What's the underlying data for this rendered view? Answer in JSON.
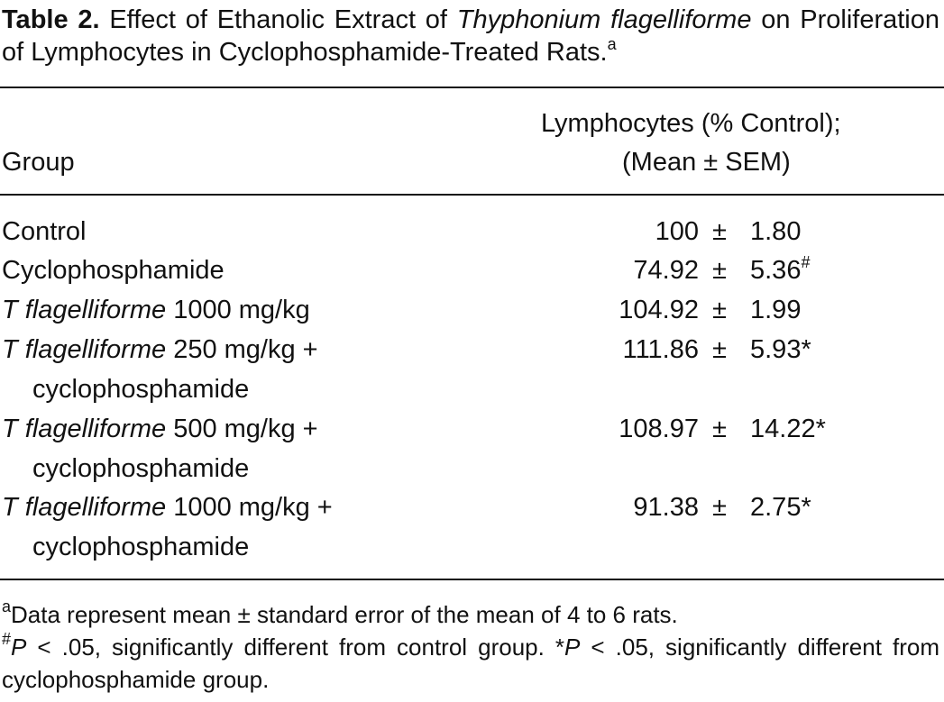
{
  "caption": {
    "label": "Table 2.",
    "text1": "Effect of Ethanolic Extract of",
    "italic": "Thyphonium flagelliforme",
    "text2": "on Proliferation of Lymphocytes in Cyclophosphamide-Treated Rats.",
    "note": "a"
  },
  "table": {
    "headers": {
      "group": "Group",
      "value_line1": "Lymphocytes (% Control);",
      "value_line2": "(Mean ± SEM)"
    },
    "sign": "±",
    "rows": [
      {
        "text": "Control",
        "mean": "100",
        "sem": "1.80"
      },
      {
        "text": "Cyclophosphamide",
        "mean": "74.92",
        "sem": "5.36",
        "mark": "#"
      },
      {
        "italic": "T flagelliforme",
        "text": "1000 mg/kg",
        "mean": "104.92",
        "sem": "1.99"
      },
      {
        "italic": "T flagelliforme",
        "text": "250 mg/kg +",
        "cont": "cyclophosphamide",
        "mean": "111.86",
        "sem": "5.93",
        "mark": "*"
      },
      {
        "italic": "T flagelliforme",
        "text": "500 mg/kg +",
        "cont": "cyclophosphamide",
        "mean": "108.97",
        "sem": "14.22",
        "mark": "*"
      },
      {
        "italic": "T flagelliforme",
        "text": "1000 mg/kg +",
        "cont": "cyclophosphamide",
        "mean": "91.38",
        "sem": "2.75",
        "mark": "*"
      }
    ]
  },
  "footnotes": [
    [
      {
        "sup": "a"
      },
      {
        "text": "Data represent mean ± standard error of the mean of 4 to 6 rats."
      }
    ],
    [
      {
        "sup": "#"
      },
      {
        "italic": "P"
      },
      {
        "text": " < .05, significantly different from control group. "
      },
      {
        "text": "*"
      },
      {
        "italic": "P"
      },
      {
        "text": " < .05, significantly different from cyclophosphamide group."
      }
    ]
  ]
}
